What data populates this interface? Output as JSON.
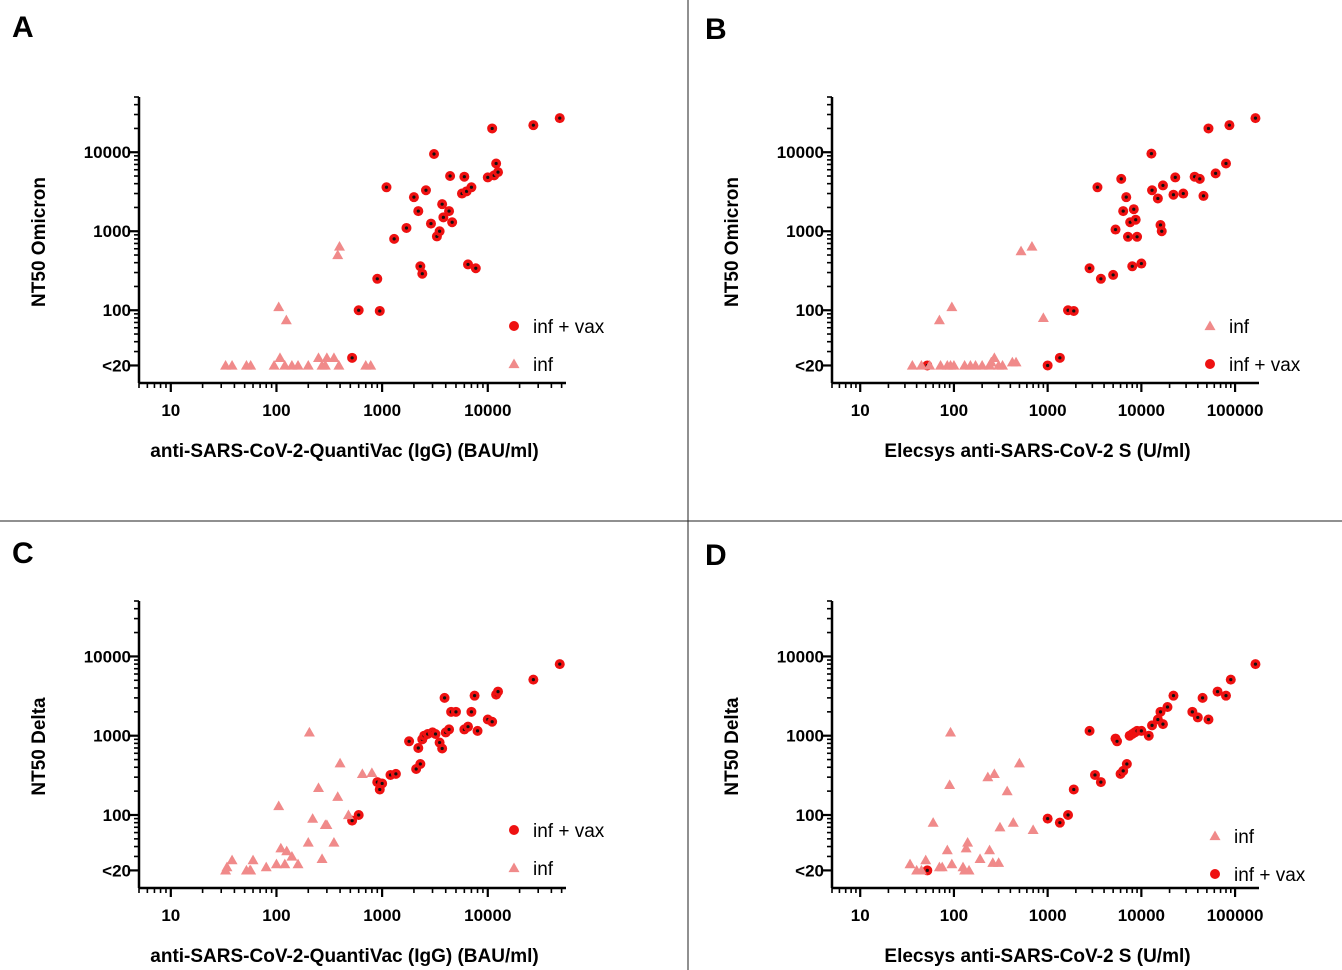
{
  "colors": {
    "inf_vax_fill": "#ee1111",
    "inf_vax_dot": "#111111",
    "inf_fill": "#f08a8a",
    "axis": "#000000",
    "divider": "#222222"
  },
  "chart_data": [
    {
      "panel": "A",
      "type": "scatter",
      "xscale": "log",
      "yscale": "log",
      "xlabel": "anti-SARS-CoV-2-QuantiVac (IgG) (BAU/ml)",
      "ylabel": "NT50 Omicron",
      "xlim": [
        5,
        55000
      ],
      "ylim": [
        12,
        50000
      ],
      "x_ticks": [
        10,
        100,
        1000,
        10000
      ],
      "x_tick_labels": [
        "10",
        "100",
        "1000",
        "10000"
      ],
      "y_ticks": [
        20,
        100,
        1000,
        10000
      ],
      "y_tick_labels": [
        "<20",
        "100",
        "1000",
        "10000"
      ],
      "legend": [
        "inf + vax",
        "inf"
      ],
      "series": [
        {
          "name": "inf + vax",
          "marker": "circle",
          "points": [
            [
              520,
              25
            ],
            [
              600,
              100
            ],
            [
              900,
              250
            ],
            [
              950,
              98
            ],
            [
              1100,
              3600
            ],
            [
              1300,
              800
            ],
            [
              1700,
              1100
            ],
            [
              2000,
              2700
            ],
            [
              2200,
              1800
            ],
            [
              2300,
              360
            ],
            [
              2400,
              290
            ],
            [
              2600,
              3300
            ],
            [
              2900,
              1250
            ],
            [
              3100,
              9500
            ],
            [
              3300,
              860
            ],
            [
              3500,
              1000
            ],
            [
              3700,
              2200
            ],
            [
              3800,
              1500
            ],
            [
              4300,
              1800
            ],
            [
              4400,
              5000
            ],
            [
              4600,
              1300
            ],
            [
              5700,
              3000
            ],
            [
              6000,
              4900
            ],
            [
              6300,
              3200
            ],
            [
              6500,
              380
            ],
            [
              7000,
              3600
            ],
            [
              7700,
              340
            ],
            [
              10000,
              4800
            ],
            [
              11000,
              20000
            ],
            [
              11500,
              5100
            ],
            [
              12000,
              7200
            ],
            [
              12500,
              5600
            ],
            [
              27000,
              22000
            ],
            [
              48000,
              27000
            ]
          ]
        },
        {
          "name": "inf",
          "marker": "triangle",
          "points": [
            [
              33,
              20
            ],
            [
              38,
              20
            ],
            [
              52,
              20
            ],
            [
              57,
              20
            ],
            [
              95,
              20
            ],
            [
              105,
              110
            ],
            [
              108,
              25
            ],
            [
              120,
              20
            ],
            [
              124,
              75
            ],
            [
              140,
              20
            ],
            [
              160,
              20
            ],
            [
              200,
              20
            ],
            [
              250,
              25
            ],
            [
              270,
              20
            ],
            [
              290,
              20
            ],
            [
              300,
              25
            ],
            [
              350,
              25
            ],
            [
              380,
              500
            ],
            [
              390,
              20
            ],
            [
              395,
              640
            ],
            [
              700,
              20
            ],
            [
              780,
              20
            ]
          ]
        }
      ]
    },
    {
      "panel": "B",
      "type": "scatter",
      "xscale": "log",
      "yscale": "log",
      "xlabel": "Elecsys anti-SARS-CoV-2 S (U/ml)",
      "ylabel": "NT50  Omicron",
      "xlim": [
        5,
        180000
      ],
      "ylim": [
        12,
        50000
      ],
      "x_ticks": [
        10,
        100,
        1000,
        10000,
        100000
      ],
      "x_tick_labels": [
        "10",
        "100",
        "1000",
        "10000",
        "100000"
      ],
      "y_ticks": [
        20,
        100,
        1000,
        10000
      ],
      "y_tick_labels": [
        "<20",
        "100",
        "1000",
        "10000"
      ],
      "legend": [
        "inf",
        "inf + vax"
      ],
      "series": [
        {
          "name": "inf + vax",
          "marker": "circle",
          "points": [
            [
              52,
              20
            ],
            [
              1000,
              20
            ],
            [
              1350,
              25
            ],
            [
              1650,
              100
            ],
            [
              1900,
              98
            ],
            [
              2800,
              340
            ],
            [
              3400,
              3600
            ],
            [
              3700,
              250
            ],
            [
              5000,
              280
            ],
            [
              5300,
              1050
            ],
            [
              6100,
              4600
            ],
            [
              6400,
              1800
            ],
            [
              6900,
              2700
            ],
            [
              7200,
              850
            ],
            [
              7600,
              1300
            ],
            [
              8000,
              360
            ],
            [
              8300,
              1900
            ],
            [
              8700,
              1400
            ],
            [
              9000,
              850
            ],
            [
              10000,
              390
            ],
            [
              12800,
              9600
            ],
            [
              13000,
              3300
            ],
            [
              15000,
              2600
            ],
            [
              16000,
              1200
            ],
            [
              16500,
              1000
            ],
            [
              17000,
              3800
            ],
            [
              22000,
              2900
            ],
            [
              23000,
              4800
            ],
            [
              28000,
              3000
            ],
            [
              37000,
              4900
            ],
            [
              42000,
              4600
            ],
            [
              46000,
              2800
            ],
            [
              52000,
              20000
            ],
            [
              62000,
              5400
            ],
            [
              80000,
              7200
            ],
            [
              87000,
              22000
            ],
            [
              165000,
              27000
            ]
          ]
        },
        {
          "name": "inf",
          "marker": "triangle",
          "points": [
            [
              36,
              20
            ],
            [
              45,
              20
            ],
            [
              55,
              20
            ],
            [
              70,
              75
            ],
            [
              72,
              20
            ],
            [
              85,
              20
            ],
            [
              92,
              20
            ],
            [
              95,
              110
            ],
            [
              100,
              20
            ],
            [
              130,
              20
            ],
            [
              150,
              20
            ],
            [
              170,
              20
            ],
            [
              200,
              20
            ],
            [
              240,
              20
            ],
            [
              250,
              22
            ],
            [
              270,
              25
            ],
            [
              300,
              20
            ],
            [
              330,
              20
            ],
            [
              420,
              22
            ],
            [
              460,
              22
            ],
            [
              520,
              560
            ],
            [
              680,
              640
            ],
            [
              900,
              80
            ]
          ]
        }
      ]
    },
    {
      "panel": "C",
      "type": "scatter",
      "xscale": "log",
      "yscale": "log",
      "xlabel": "anti-SARS-CoV-2-QuantiVac (IgG) (BAU/ml)",
      "ylabel": "NT50 Delta",
      "xlim": [
        5,
        55000
      ],
      "ylim": [
        12,
        50000
      ],
      "x_ticks": [
        10,
        100,
        1000,
        10000
      ],
      "x_tick_labels": [
        "10",
        "100",
        "1000",
        "10000"
      ],
      "y_ticks": [
        20,
        100,
        1000,
        10000
      ],
      "y_tick_labels": [
        "<20",
        "100",
        "1000",
        "10000"
      ],
      "legend": [
        "inf + vax",
        "inf"
      ],
      "series": [
        {
          "name": "inf + vax",
          "marker": "circle",
          "points": [
            [
              520,
              85
            ],
            [
              600,
              100
            ],
            [
              900,
              260
            ],
            [
              950,
              210
            ],
            [
              1000,
              250
            ],
            [
              1200,
              320
            ],
            [
              1350,
              330
            ],
            [
              1800,
              850
            ],
            [
              2100,
              380
            ],
            [
              2200,
              700
            ],
            [
              2300,
              440
            ],
            [
              2400,
              900
            ],
            [
              2500,
              1000
            ],
            [
              2700,
              1050
            ],
            [
              3000,
              1100
            ],
            [
              3200,
              1050
            ],
            [
              3500,
              820
            ],
            [
              3700,
              690
            ],
            [
              3900,
              3000
            ],
            [
              4000,
              1100
            ],
            [
              4300,
              1200
            ],
            [
              4500,
              2000
            ],
            [
              5000,
              2000
            ],
            [
              6000,
              1200
            ],
            [
              6500,
              1300
            ],
            [
              7000,
              2000
            ],
            [
              7500,
              3200
            ],
            [
              8000,
              1150
            ],
            [
              10000,
              1600
            ],
            [
              11000,
              1500
            ],
            [
              12000,
              3300
            ],
            [
              12500,
              3600
            ],
            [
              27000,
              5100
            ],
            [
              48000,
              8000
            ]
          ]
        },
        {
          "name": "inf",
          "marker": "triangle",
          "points": [
            [
              33,
              20
            ],
            [
              34,
              22
            ],
            [
              38,
              27
            ],
            [
              52,
              20
            ],
            [
              56,
              20
            ],
            [
              57,
              20
            ],
            [
              60,
              27
            ],
            [
              80,
              22
            ],
            [
              100,
              24
            ],
            [
              105,
              130
            ],
            [
              110,
              38
            ],
            [
              120,
              24
            ],
            [
              125,
              35
            ],
            [
              140,
              30
            ],
            [
              160,
              24
            ],
            [
              200,
              45
            ],
            [
              205,
              1100
            ],
            [
              220,
              90
            ],
            [
              250,
              220
            ],
            [
              270,
              28
            ],
            [
              290,
              75
            ],
            [
              300,
              75
            ],
            [
              350,
              45
            ],
            [
              380,
              170
            ],
            [
              400,
              450
            ],
            [
              480,
              100
            ],
            [
              650,
              330
            ],
            [
              800,
              340
            ]
          ]
        }
      ]
    },
    {
      "panel": "D",
      "type": "scatter",
      "xscale": "log",
      "yscale": "log",
      "xlabel": "Elecsys anti-SARS-CoV-2 S (U/ml)",
      "ylabel": "NT50  Delta",
      "xlim": [
        5,
        180000
      ],
      "ylim": [
        12,
        50000
      ],
      "x_ticks": [
        10,
        100,
        1000,
        10000,
        100000
      ],
      "x_tick_labels": [
        "10",
        "100",
        "1000",
        "10000",
        "100000"
      ],
      "y_ticks": [
        20,
        100,
        1000,
        10000
      ],
      "y_tick_labels": [
        "<20",
        "100",
        "1000",
        "10000"
      ],
      "legend": [
        "inf",
        "inf + vax"
      ],
      "series": [
        {
          "name": "inf + vax",
          "marker": "circle",
          "points": [
            [
              52,
              20
            ],
            [
              1000,
              90
            ],
            [
              1350,
              80
            ],
            [
              1650,
              100
            ],
            [
              1900,
              210
            ],
            [
              2800,
              1150
            ],
            [
              3200,
              320
            ],
            [
              3700,
              260
            ],
            [
              5300,
              920
            ],
            [
              5500,
              850
            ],
            [
              6000,
              330
            ],
            [
              6400,
              360
            ],
            [
              7000,
              440
            ],
            [
              7500,
              1000
            ],
            [
              8000,
              1050
            ],
            [
              8500,
              1100
            ],
            [
              9000,
              1150
            ],
            [
              10000,
              1150
            ],
            [
              12000,
              1000
            ],
            [
              13000,
              1350
            ],
            [
              15000,
              1600
            ],
            [
              16000,
              2000
            ],
            [
              17000,
              1400
            ],
            [
              19000,
              2300
            ],
            [
              22000,
              3200
            ],
            [
              35000,
              2000
            ],
            [
              40000,
              1700
            ],
            [
              45000,
              3000
            ],
            [
              52000,
              1600
            ],
            [
              65000,
              3600
            ],
            [
              80000,
              3200
            ],
            [
              90000,
              5100
            ],
            [
              165000,
              8000
            ]
          ]
        },
        {
          "name": "inf",
          "marker": "triangle",
          "points": [
            [
              34,
              24
            ],
            [
              40,
              20
            ],
            [
              45,
              20
            ],
            [
              50,
              27
            ],
            [
              60,
              80
            ],
            [
              70,
              22
            ],
            [
              75,
              22
            ],
            [
              85,
              36
            ],
            [
              90,
              240
            ],
            [
              92,
              1100
            ],
            [
              95,
              24
            ],
            [
              125,
              22
            ],
            [
              130,
              20
            ],
            [
              135,
              38
            ],
            [
              140,
              45
            ],
            [
              145,
              20
            ],
            [
              190,
              28
            ],
            [
              230,
              300
            ],
            [
              240,
              36
            ],
            [
              260,
              25
            ],
            [
              270,
              330
            ],
            [
              300,
              25
            ],
            [
              310,
              70
            ],
            [
              370,
              200
            ],
            [
              430,
              80
            ],
            [
              500,
              450
            ],
            [
              700,
              65
            ]
          ]
        }
      ]
    }
  ]
}
